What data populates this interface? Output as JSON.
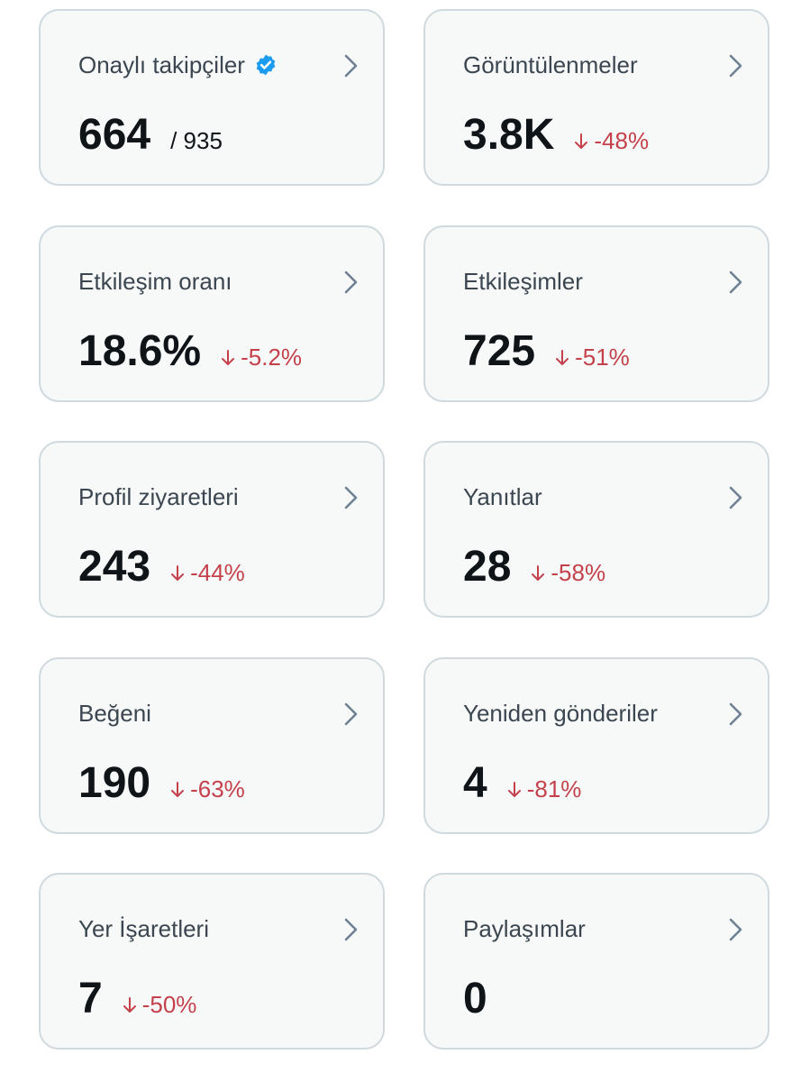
{
  "colors": {
    "card_bg": "#f7f9f9",
    "card_border": "#cfd9de",
    "negative": "#c4414b",
    "verified_blue": "#1d9bf0",
    "chevron": "#6e8192"
  },
  "cards": [
    {
      "title": "Onaylı takipçiler",
      "icon": "verified-badge-icon",
      "value": "664",
      "sub_value": "/ 935",
      "change": ""
    },
    {
      "title": "Görüntülenmeler",
      "value": "3.8K",
      "sub_value": "",
      "change": "-48%"
    },
    {
      "title": "Etkileşim oranı",
      "value": "18.6%",
      "sub_value": "",
      "change": "-5.2%"
    },
    {
      "title": "Etkileşimler",
      "value": "725",
      "sub_value": "",
      "change": "-51%"
    },
    {
      "title": "Profil ziyaretleri",
      "value": "243",
      "sub_value": "",
      "change": "-44%"
    },
    {
      "title": "Yanıtlar",
      "value": "28",
      "sub_value": "",
      "change": "-58%"
    },
    {
      "title": "Beğeni",
      "value": "190",
      "sub_value": "",
      "change": "-63%"
    },
    {
      "title": "Yeniden gönderiler",
      "value": "4",
      "sub_value": "",
      "change": "-81%"
    },
    {
      "title": "Yer İşaretleri",
      "value": "7",
      "sub_value": "",
      "change": "-50%"
    },
    {
      "title": "Paylaşımlar",
      "value": "0",
      "sub_value": "",
      "change": ""
    }
  ]
}
